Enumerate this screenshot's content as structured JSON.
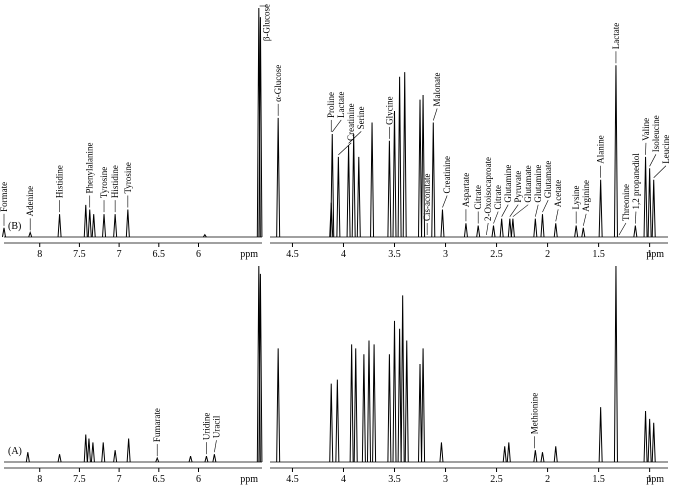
{
  "chart_data": [
    {
      "type": "spectrum",
      "panel_label": "(B)",
      "xlabel": "ppm",
      "color": "#000000",
      "xlim": [
        8.45,
        5.2
      ],
      "ylim": [
        0,
        100
      ],
      "xticks": [
        8.0,
        7.5,
        7.0,
        6.5,
        6.0
      ],
      "x": [
        8.45,
        8.12,
        7.75,
        7.42,
        7.37,
        7.32,
        7.19,
        7.05,
        6.89,
        5.92,
        5.24,
        5.22
      ],
      "values": [
        4,
        2,
        10,
        14,
        12,
        10,
        10,
        10,
        12,
        1,
        100,
        96
      ],
      "annotations": [
        {
          "text": "Formate",
          "x": 8.45
        },
        {
          "text": "Adenine",
          "x": 8.12
        },
        {
          "text": "Histidine",
          "x": 7.75
        },
        {
          "text": "Phenylalanine",
          "x": 7.37
        },
        {
          "text": "Tyrosine",
          "x": 7.19
        },
        {
          "text": "Histidine",
          "x": 7.05
        },
        {
          "text": "Tyrosine",
          "x": 6.89
        },
        {
          "text": "β-Glucose",
          "x": 5.23
        }
      ]
    },
    {
      "type": "spectrum",
      "xlabel": "ppm",
      "color": "#000000",
      "xlim": [
        4.72,
        0.82
      ],
      "ylim": [
        0,
        100
      ],
      "xticks": [
        4.5,
        4.0,
        3.5,
        3.0,
        2.5,
        2.0,
        1.5,
        1.0
      ],
      "x": [
        4.64,
        4.12,
        4.11,
        4.05,
        3.95,
        3.9,
        3.85,
        3.72,
        3.55,
        3.5,
        3.45,
        3.4,
        3.25,
        3.22,
        3.12,
        3.03,
        2.8,
        2.68,
        2.53,
        2.45,
        2.37,
        2.34,
        2.12,
        2.05,
        1.92,
        1.72,
        1.65,
        1.48,
        1.33,
        1.14,
        1.04,
        1.0,
        0.96
      ],
      "values": [
        52,
        15,
        45,
        35,
        40,
        45,
        35,
        50,
        42,
        55,
        70,
        72,
        60,
        62,
        50,
        12,
        6,
        5,
        5,
        8,
        8,
        8,
        8,
        10,
        6,
        5,
        4,
        25,
        75,
        5,
        35,
        30,
        25
      ],
      "annotations": [
        {
          "text": "α-Glucose",
          "x": 4.64
        },
        {
          "text": "Proline",
          "x": 4.12
        },
        {
          "text": "Lactate",
          "x": 4.11
        },
        {
          "text": "Creatinine",
          "x": 4.05
        },
        {
          "text": "Serine",
          "x": 3.95
        },
        {
          "text": "Glycine",
          "x": 3.55
        },
        {
          "text": "Cis-aconitate",
          "x": 3.18
        },
        {
          "text": "Malonate",
          "x": 3.12
        },
        {
          "text": "Creatinine",
          "x": 3.03
        },
        {
          "text": "Aspartate",
          "x": 2.8
        },
        {
          "text": "Citrate",
          "x": 2.68
        },
        {
          "text": "2-Oxoisocaproate",
          "x": 2.6
        },
        {
          "text": "Citrate",
          "x": 2.53
        },
        {
          "text": "Glutamine",
          "x": 2.45
        },
        {
          "text": "Pyruvate",
          "x": 2.37
        },
        {
          "text": "Glutamate",
          "x": 2.34
        },
        {
          "text": "Glutamine",
          "x": 2.12
        },
        {
          "text": "Glutamate",
          "x": 2.05
        },
        {
          "text": "Acetate",
          "x": 1.92
        },
        {
          "text": "Lysine",
          "x": 1.72
        },
        {
          "text": "Arginine",
          "x": 1.65
        },
        {
          "text": "Alanine",
          "x": 1.48
        },
        {
          "text": "Lactate",
          "x": 1.33
        },
        {
          "text": "Threonine",
          "x": 1.3
        },
        {
          "text": "1,2 propanediol",
          "x": 1.14
        },
        {
          "text": "Valine",
          "x": 1.04
        },
        {
          "text": "Isoleucine",
          "x": 1.0
        },
        {
          "text": "Leucine",
          "x": 0.96
        }
      ]
    },
    {
      "type": "spectrum",
      "panel_label": "(A)",
      "xlabel": "ppm",
      "color": "#000000",
      "xlim": [
        8.45,
        5.2
      ],
      "ylim": [
        0,
        100
      ],
      "xticks": [
        8.0,
        7.5,
        7.0,
        6.5,
        6.0
      ],
      "x": [
        8.15,
        7.75,
        7.42,
        7.38,
        7.33,
        7.2,
        7.05,
        6.88,
        6.52,
        6.1,
        5.9,
        5.8,
        5.24,
        5.22
      ],
      "values": [
        5,
        4,
        14,
        12,
        10,
        10,
        6,
        12,
        2,
        3,
        3,
        4,
        100,
        96
      ],
      "annotations": [
        {
          "text": "Fumarate",
          "x": 6.52
        },
        {
          "text": "Uridine",
          "x": 5.9
        },
        {
          "text": "Uracil",
          "x": 5.8
        }
      ]
    },
    {
      "type": "spectrum",
      "xlabel": "ppm",
      "color": "#000000",
      "xlim": [
        4.72,
        0.82
      ],
      "ylim": [
        0,
        100
      ],
      "xticks": [
        4.5,
        4.0,
        3.5,
        3.0,
        2.5,
        2.0,
        1.5,
        1.0
      ],
      "x": [
        4.64,
        4.12,
        4.06,
        3.92,
        3.88,
        3.8,
        3.75,
        3.7,
        3.55,
        3.5,
        3.45,
        3.42,
        3.38,
        3.25,
        3.22,
        3.04,
        2.42,
        2.38,
        2.12,
        2.05,
        1.92,
        1.48,
        1.33,
        1.04,
        1.0,
        0.96
      ],
      "values": [
        58,
        40,
        42,
        60,
        58,
        55,
        62,
        60,
        55,
        72,
        68,
        85,
        62,
        50,
        58,
        10,
        8,
        10,
        6,
        5,
        8,
        28,
        100,
        26,
        22,
        20
      ],
      "annotations": [
        {
          "text": "Methionine",
          "x": 2.13
        }
      ]
    }
  ]
}
